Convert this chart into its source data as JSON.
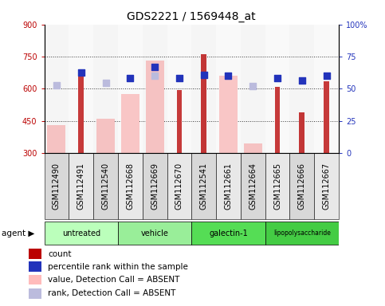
{
  "title": "GDS2221 / 1569448_at",
  "samples": [
    "GSM112490",
    "GSM112491",
    "GSM112540",
    "GSM112668",
    "GSM112669",
    "GSM112670",
    "GSM112541",
    "GSM112661",
    "GSM112664",
    "GSM112665",
    "GSM112666",
    "GSM112667"
  ],
  "agents": [
    {
      "label": "untreated",
      "indices": [
        0,
        1,
        2
      ],
      "color": "#bbffbb"
    },
    {
      "label": "vehicle",
      "indices": [
        3,
        4,
        5
      ],
      "color": "#99ee99"
    },
    {
      "label": "galectin-1",
      "indices": [
        6,
        7,
        8
      ],
      "color": "#55dd55"
    },
    {
      "label": "lipopolysaccharide",
      "indices": [
        9,
        10,
        11
      ],
      "color": "#44cc44"
    }
  ],
  "red_bars": [
    null,
    675,
    null,
    null,
    null,
    595,
    760,
    null,
    null,
    610,
    490,
    635
  ],
  "pink_bars": [
    430,
    null,
    460,
    575,
    730,
    null,
    null,
    660,
    345,
    null,
    null,
    null
  ],
  "blue_squares_val": [
    null,
    675,
    null,
    648,
    700,
    648,
    665,
    660,
    null,
    648,
    640,
    660
  ],
  "lavender_squares_val": [
    615,
    null,
    627,
    null,
    662,
    null,
    null,
    null,
    612,
    null,
    null,
    null
  ],
  "ylim": [
    300,
    900
  ],
  "yticks": [
    300,
    450,
    600,
    750,
    900
  ],
  "y2ticks": [
    0,
    25,
    50,
    75,
    100
  ],
  "y2tick_labels": [
    "0",
    "25",
    "50",
    "75",
    "100%"
  ],
  "pink_bar_color": "#ffbbbb",
  "lavender_color": "#bbbbdd",
  "red_color": "#bb0000",
  "blue_color": "#2233bb",
  "title_fontsize": 10,
  "tick_fontsize": 7,
  "legend_fontsize": 7.5,
  "col_bg_even": "#d8d8d8",
  "col_bg_odd": "#e8e8e8"
}
